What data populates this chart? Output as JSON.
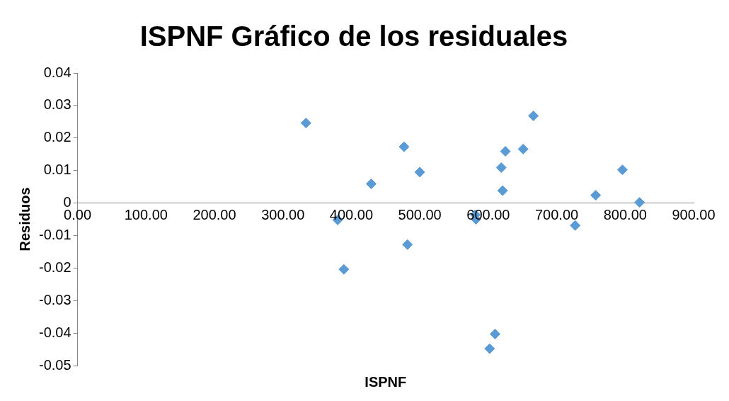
{
  "chart_data": {
    "type": "scatter",
    "title": "ISPNF Gráfico de los residuales",
    "xlabel": "ISPNF",
    "ylabel": "Residuos",
    "x": [
      333.7,
      380,
      389,
      429,
      477,
      482,
      500,
      581,
      582,
      602,
      610,
      619,
      621,
      625,
      651,
      666,
      727,
      757,
      796,
      821
    ],
    "series": [
      {
        "color": "#5b9bd5",
        "values": [
          0.0246,
          -0.0052,
          -0.0204,
          0.0059,
          0.0173,
          -0.0128,
          0.0095,
          -0.0036,
          -0.005,
          -0.0448,
          -0.0403,
          0.0109,
          0.0038,
          0.0159,
          0.0166,
          0.0268,
          -0.0069,
          0.0024,
          0.0102,
          0.0002
        ]
      }
    ],
    "xlim": [
      0,
      900
    ],
    "xticks": [
      {
        "value": 0,
        "label": "0.00"
      },
      {
        "value": 100,
        "label": "100.00"
      },
      {
        "value": 200,
        "label": "200.00"
      },
      {
        "value": 300,
        "label": "300.00"
      },
      {
        "value": 400,
        "label": "400.00"
      },
      {
        "value": 500,
        "label": "500.00"
      },
      {
        "value": 600,
        "label": "600.00"
      },
      {
        "value": 700,
        "label": "700.00"
      },
      {
        "value": 800,
        "label": "800.00"
      },
      {
        "value": 900,
        "label": "900.00"
      }
    ],
    "ylim": [
      -0.05,
      0.04
    ],
    "yticks": [
      -0.05,
      -0.04,
      -0.03,
      -0.02,
      -0.01,
      0,
      0.01,
      0.02,
      0.03,
      0.04
    ],
    "grid": false,
    "legend": false,
    "marker": "diamond"
  }
}
